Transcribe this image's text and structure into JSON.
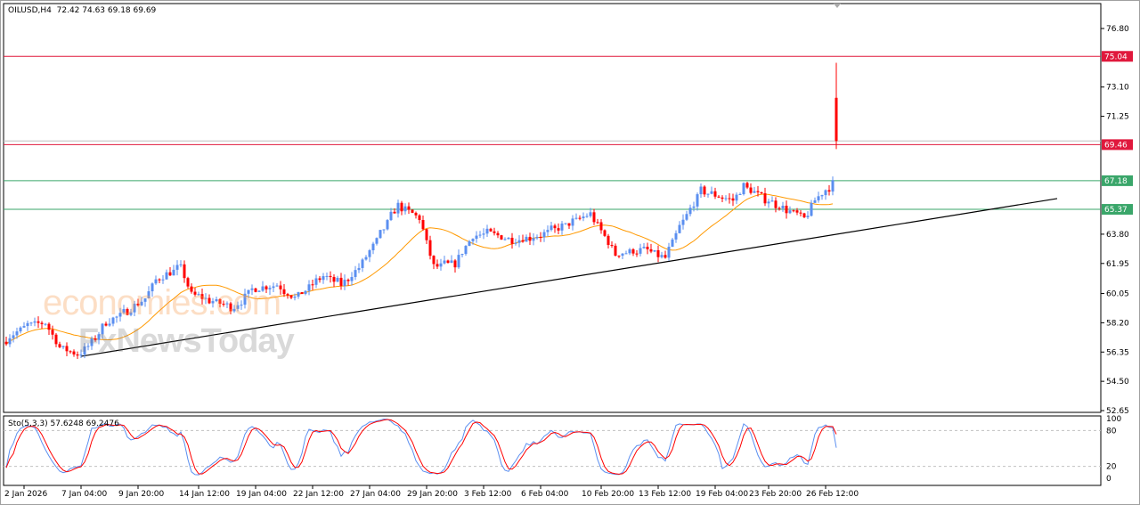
{
  "header": {
    "symbol": "OILUSD,H4",
    "ohlc": "72.42 74.63 69.18 69.69"
  },
  "watermark": {
    "line1": "economies.com",
    "line2": "FxNewsToday"
  },
  "stochastic": {
    "label": "Sto(5,3,3) 57.6248 69.2476",
    "levels": [
      "100",
      "80",
      "20",
      "0"
    ]
  },
  "colors": {
    "bull": "#5b8ff0",
    "bear": "#ff0000",
    "ma": "#ff9900",
    "resistance": "#e0183c",
    "support": "#3aa66a",
    "trendline": "#000000",
    "sto_main": "#5b8ff0",
    "sto_signal": "#ff0000"
  },
  "chart_data": {
    "type": "candlestick",
    "title": "OILUSD,H4",
    "y_ticks": [
      "76.80",
      "73.10",
      "71.25",
      "63.80",
      "61.95",
      "60.05",
      "58.20",
      "56.35",
      "54.50",
      "52.65"
    ],
    "ylim": [
      52.65,
      76.8
    ],
    "x_ticks": [
      {
        "bar": 5,
        "label": "2 Jan 2026"
      },
      {
        "bar": 21,
        "label": "7 Jan 04:00"
      },
      {
        "bar": 37,
        "label": "9 Jan 20:00"
      },
      {
        "bar": 54,
        "label": "14 Jan 12:00"
      },
      {
        "bar": 70,
        "label": "19 Jan 04:00"
      },
      {
        "bar": 86,
        "label": "22 Jan 12:00"
      },
      {
        "bar": 102,
        "label": "27 Jan 04:00"
      },
      {
        "bar": 118,
        "label": "29 Jan 20:00"
      },
      {
        "bar": 134,
        "label": "3 Feb 12:00"
      },
      {
        "bar": 150,
        "label": "6 Feb 04:00"
      },
      {
        "bar": 167,
        "label": "10 Feb 20:00"
      },
      {
        "bar": 183,
        "label": "13 Feb 12:00"
      },
      {
        "bar": 199,
        "label": "19 Feb 04:00"
      },
      {
        "bar": 214,
        "label": "23 Feb 20:00"
      },
      {
        "bar": 230,
        "label": "26 Feb 12:00"
      }
    ],
    "close_path": [
      [
        0,
        57.2
      ],
      [
        6,
        58.05
      ],
      [
        11,
        58.2
      ],
      [
        15,
        56.65
      ],
      [
        20,
        56.2
      ],
      [
        24,
        56.9
      ],
      [
        28,
        58.2
      ],
      [
        34,
        58.9
      ],
      [
        39,
        59.75
      ],
      [
        42,
        60.9
      ],
      [
        49,
        61.7
      ],
      [
        52,
        60.0
      ],
      [
        59,
        59.5
      ],
      [
        64,
        59.2
      ],
      [
        69,
        60.3
      ],
      [
        76,
        60.6
      ],
      [
        81,
        59.75
      ],
      [
        89,
        61.15
      ],
      [
        94,
        60.6
      ],
      [
        99,
        61.7
      ],
      [
        104,
        63.4
      ],
      [
        110,
        65.65
      ],
      [
        116,
        64.8
      ],
      [
        120,
        61.7
      ],
      [
        126,
        62.0
      ],
      [
        131,
        63.7
      ],
      [
        136,
        63.85
      ],
      [
        142,
        63.4
      ],
      [
        149,
        63.7
      ],
      [
        156,
        64.25
      ],
      [
        164,
        65.1
      ],
      [
        171,
        62.55
      ],
      [
        179,
        62.85
      ],
      [
        185,
        62.3
      ],
      [
        189,
        64.25
      ],
      [
        195,
        66.5
      ],
      [
        204,
        65.95
      ],
      [
        207,
        66.8
      ],
      [
        214,
        65.95
      ],
      [
        219,
        65.37
      ],
      [
        224,
        64.8
      ],
      [
        227,
        65.95
      ],
      [
        232,
        67.05
      ]
    ],
    "last_bar": {
      "open": 72.42,
      "high": 74.63,
      "low": 69.18,
      "close": 69.69
    },
    "bid": 69.69,
    "levels": [
      {
        "price": 75.04,
        "label": "75.04",
        "kind": "resistance"
      },
      {
        "price": 69.46,
        "label": "69.46",
        "kind": "resistance"
      },
      {
        "price": 67.18,
        "label": "67.18",
        "kind": "support"
      },
      {
        "price": 65.37,
        "label": "65.37",
        "kind": "support"
      }
    ],
    "trendline": {
      "from": [
        21,
        56.08
      ],
      "to": [
        295,
        66.05
      ]
    },
    "moving_average_period": 20
  }
}
